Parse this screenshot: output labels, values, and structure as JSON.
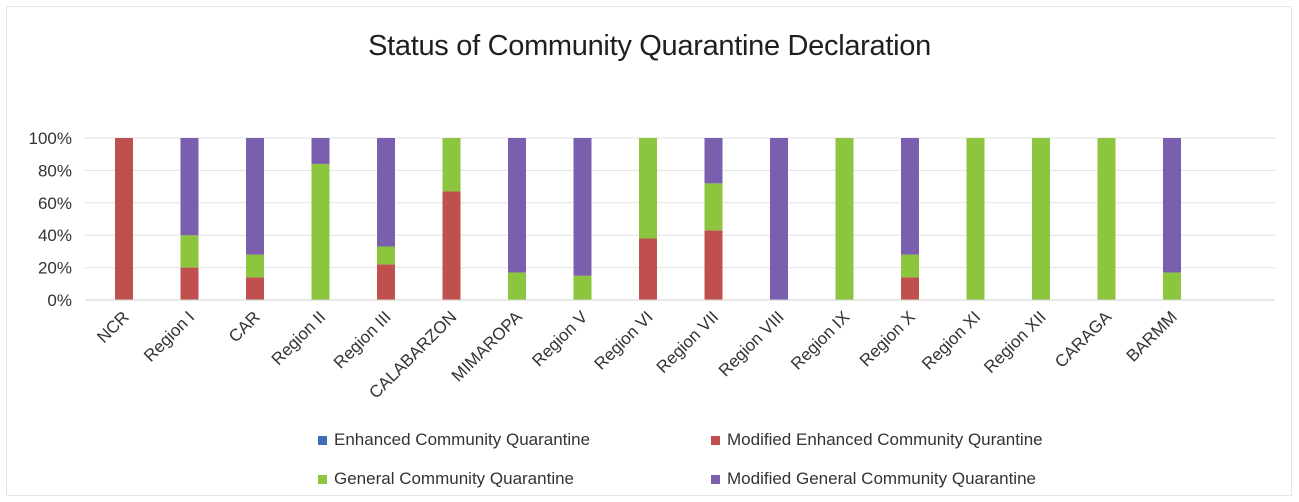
{
  "chart_data": {
    "type": "bar",
    "stacked": true,
    "title": "Status of Community Quarantine Declaration",
    "xlabel": "",
    "ylabel": "",
    "ylim": [
      0,
      100
    ],
    "yticks": [
      "0%",
      "20%",
      "40%",
      "60%",
      "80%",
      "100%"
    ],
    "grid": true,
    "legend_position": "bottom",
    "categories": [
      "NCR",
      "Region I",
      "CAR",
      "Region II",
      "Region III",
      "CALABARZON",
      "MIMAROPA",
      "Region V",
      "Region VI",
      "Region VII",
      "Region VIII",
      "Region IX",
      "Region X",
      "Region XI",
      "Region XII",
      "CARAGA",
      "BARMM"
    ],
    "series": [
      {
        "name": "Enhanced Community Quarantine",
        "color": "#3f6fb8",
        "values": [
          0,
          0,
          0,
          0,
          0,
          0,
          0,
          0,
          0,
          0,
          0,
          0,
          0,
          0,
          0,
          0,
          0
        ]
      },
      {
        "name": "Modified Enhanced Community Qurantine",
        "color": "#c0504d",
        "values": [
          100,
          20,
          14,
          0,
          22,
          67,
          0,
          0,
          38,
          43,
          0,
          0,
          14,
          0,
          0,
          0,
          0
        ]
      },
      {
        "name": "General Community Quarantine",
        "color": "#8cc63f",
        "values": [
          0,
          20,
          14,
          84,
          11,
          33,
          17,
          15,
          62,
          29,
          0,
          100,
          14,
          100,
          100,
          100,
          17
        ]
      },
      {
        "name": "Modified General Community Quarantine",
        "color": "#7a5fae",
        "values": [
          0,
          60,
          72,
          16,
          67,
          0,
          83,
          85,
          0,
          28,
          100,
          0,
          72,
          0,
          0,
          0,
          83
        ]
      }
    ]
  }
}
